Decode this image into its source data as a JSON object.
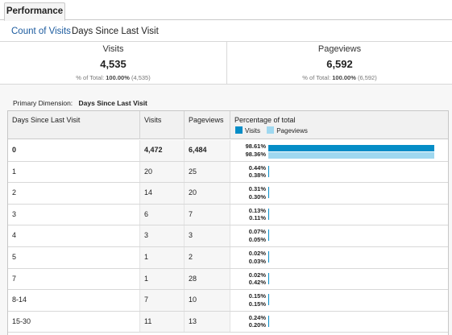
{
  "tab": {
    "label": "Performance"
  },
  "subnav": {
    "link": "Count of Visits",
    "current": "Days Since Last Visit"
  },
  "scorecards": [
    {
      "label": "Visits",
      "value": "4,535",
      "sub_prefix": "% of Total: ",
      "sub_bold": "100.00%",
      "sub_suffix": " (4,535)"
    },
    {
      "label": "Pageviews",
      "value": "6,592",
      "sub_prefix": "% of Total: ",
      "sub_bold": "100.00%",
      "sub_suffix": " (6,592)"
    }
  ],
  "primary": {
    "label": "Primary Dimension:",
    "value": "Days Since Last Visit"
  },
  "table": {
    "headers": {
      "dimension": "Days Since Last Visit",
      "visits": "Visits",
      "pageviews": "Pageviews",
      "pct": "Percentage of total"
    },
    "legend": {
      "visits": "Visits",
      "pageviews": "Pageviews"
    },
    "colors": {
      "visits": "#058dc7",
      "pageviews": "#9fd8f0"
    },
    "rows": [
      {
        "dim": "0",
        "visits": "4,472",
        "pageviews": "6,484",
        "pct_visits": "98.61%",
        "pct_pageviews": "98.36%",
        "visits_share": 0.9861,
        "pageviews_share": 0.9836
      },
      {
        "dim": "1",
        "visits": "20",
        "pageviews": "25",
        "pct_visits": "0.44%",
        "pct_pageviews": "0.38%",
        "visits_share": 0.0044,
        "pageviews_share": 0.0038
      },
      {
        "dim": "2",
        "visits": "14",
        "pageviews": "20",
        "pct_visits": "0.31%",
        "pct_pageviews": "0.30%",
        "visits_share": 0.0031,
        "pageviews_share": 0.003
      },
      {
        "dim": "3",
        "visits": "6",
        "pageviews": "7",
        "pct_visits": "0.13%",
        "pct_pageviews": "0.11%",
        "visits_share": 0.0013,
        "pageviews_share": 0.0011
      },
      {
        "dim": "4",
        "visits": "3",
        "pageviews": "3",
        "pct_visits": "0.07%",
        "pct_pageviews": "0.05%",
        "visits_share": 0.0007,
        "pageviews_share": 0.0005
      },
      {
        "dim": "5",
        "visits": "1",
        "pageviews": "2",
        "pct_visits": "0.02%",
        "pct_pageviews": "0.03%",
        "visits_share": 0.0002,
        "pageviews_share": 0.0003
      },
      {
        "dim": "7",
        "visits": "1",
        "pageviews": "28",
        "pct_visits": "0.02%",
        "pct_pageviews": "0.42%",
        "visits_share": 0.0002,
        "pageviews_share": 0.0042
      },
      {
        "dim": "8-14",
        "visits": "7",
        "pageviews": "10",
        "pct_visits": "0.15%",
        "pct_pageviews": "0.15%",
        "visits_share": 0.0015,
        "pageviews_share": 0.0015
      },
      {
        "dim": "15-30",
        "visits": "11",
        "pageviews": "13",
        "pct_visits": "0.24%",
        "pct_pageviews": "0.20%",
        "visits_share": 0.0024,
        "pageviews_share": 0.002
      }
    ]
  }
}
